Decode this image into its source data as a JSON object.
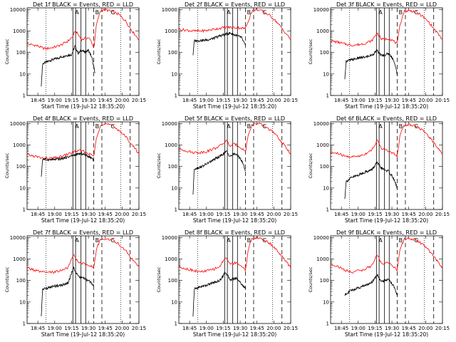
{
  "figure": {
    "xlabel": "Start Time (19-Jul-12 18:35:20)",
    "ylabel": "Counts/sec",
    "x_ticks": [
      "18:45",
      "19:00",
      "19:15",
      "19:30",
      "19:45",
      "20:00",
      "20:15"
    ],
    "y_ticks": [
      "1",
      "10",
      "100",
      "1000",
      "10000"
    ],
    "colors": {
      "events": "#000000",
      "lld": "#ff0000",
      "axes": "#000000"
    }
  },
  "chart_data": [
    {
      "type": "line",
      "title": "Det 1f BLACK = Events, RED = LLD",
      "xlim": [
        18.59,
        20.25
      ],
      "ylim": [
        1,
        12000
      ],
      "yscale": "log",
      "xlabel": "Start Time (19-Jul-12 18:35:20)",
      "ylabel": "Counts/sec",
      "markers": [
        "A",
        "B",
        "C"
      ],
      "series": [
        {
          "color": "#000000",
          "x": [
            18.8,
            18.82,
            18.87,
            18.95,
            19.05,
            19.15,
            19.25,
            19.3,
            19.35,
            19.4,
            19.45,
            19.5,
            19.55,
            19.6
          ],
          "y": [
            3,
            30,
            35,
            45,
            55,
            70,
            80,
            200,
            90,
            130,
            100,
            130,
            60,
            10
          ]
        },
        {
          "color": "#ff0000",
          "x": [
            18.59,
            18.7,
            18.75,
            18.8,
            18.87,
            19.0,
            19.1,
            19.2,
            19.28,
            19.3,
            19.4,
            19.5,
            19.55,
            19.58,
            19.62,
            19.68,
            19.75,
            19.85,
            19.95,
            20.05,
            20.15,
            20.25
          ],
          "y": [
            250,
            220,
            200,
            170,
            150,
            180,
            230,
            350,
            600,
            1100,
            400,
            500,
            300,
            150,
            2000,
            9000,
            10000,
            8000,
            6000,
            3000,
            1000,
            400
          ]
        }
      ]
    },
    {
      "type": "line",
      "title": "Det 2f BLACK = Events, RED = LLD",
      "xlim": [
        18.59,
        20.25
      ],
      "ylim": [
        1,
        12000
      ],
      "yscale": "log",
      "xlabel": "Start Time (19-Jul-12 18:35:20)",
      "ylabel": "Counts/sec",
      "markers": [
        "A",
        "B",
        "C"
      ],
      "series": [
        {
          "color": "#000000",
          "x": [
            18.8,
            18.82,
            18.9,
            19.0,
            19.1,
            19.2,
            19.28,
            19.35,
            19.45,
            19.52,
            19.58
          ],
          "y": [
            80,
            350,
            360,
            380,
            450,
            600,
            700,
            800,
            600,
            500,
            200
          ]
        },
        {
          "color": "#ff0000",
          "x": [
            18.59,
            18.7,
            18.8,
            18.9,
            19.0,
            19.1,
            19.2,
            19.3,
            19.4,
            19.5,
            19.58,
            19.62,
            19.68,
            19.75,
            19.85,
            19.95,
            20.05,
            20.15,
            20.25
          ],
          "y": [
            1200,
            1100,
            1000,
            1000,
            1050,
            1200,
            1350,
            1500,
            1450,
            1400,
            1300,
            3000,
            9000,
            10000,
            8000,
            5000,
            2500,
            1000,
            400
          ]
        }
      ]
    },
    {
      "type": "line",
      "title": "Det 3f BLACK = Events, RED = LLD",
      "xlim": [
        18.59,
        20.25
      ],
      "ylim": [
        1,
        12000
      ],
      "yscale": "log",
      "xlabel": "Start Time (19-Jul-12 18:35:20)",
      "ylabel": "Counts/sec",
      "markers": [
        "A",
        "B",
        "C"
      ],
      "series": [
        {
          "color": "#000000",
          "x": [
            18.8,
            18.82,
            18.9,
            19.0,
            19.1,
            19.2,
            19.28,
            19.35,
            19.45,
            19.52,
            19.58
          ],
          "y": [
            5,
            40,
            45,
            55,
            60,
            75,
            120,
            70,
            90,
            50,
            10
          ]
        },
        {
          "color": "#ff0000",
          "x": [
            18.59,
            18.7,
            18.8,
            18.9,
            19.0,
            19.1,
            19.2,
            19.28,
            19.35,
            19.45,
            19.52,
            19.58,
            19.62,
            19.68,
            19.75,
            19.85,
            19.95,
            20.05,
            20.15,
            20.25
          ],
          "y": [
            350,
            300,
            250,
            220,
            230,
            270,
            350,
            800,
            400,
            450,
            350,
            250,
            2000,
            8000,
            9000,
            8000,
            5000,
            2500,
            1000,
            400
          ]
        }
      ]
    },
    {
      "type": "line",
      "title": "Det 4f BLACK = Events, RED = LLD",
      "xlim": [
        18.59,
        20.25
      ],
      "ylim": [
        1,
        12000
      ],
      "yscale": "log",
      "xlabel": "Start Time (19-Jul-12 18:35:20)",
      "ylabel": "Counts/sec",
      "markers": [
        "A",
        "B",
        "C"
      ],
      "series": [
        {
          "color": "#000000",
          "x": [
            18.8,
            18.82,
            18.9,
            19.0,
            19.1,
            19.2,
            19.3,
            19.4,
            19.5,
            19.55,
            19.58
          ],
          "y": [
            30,
            220,
            210,
            210,
            230,
            280,
            350,
            400,
            300,
            250,
            200
          ]
        },
        {
          "color": "#ff0000",
          "x": [
            18.59,
            18.7,
            18.8,
            18.9,
            19.0,
            19.1,
            19.2,
            19.3,
            19.4,
            19.5,
            19.58,
            19.62,
            19.68,
            19.75,
            19.85,
            19.95,
            20.05,
            20.15,
            20.25
          ],
          "y": [
            350,
            300,
            250,
            240,
            250,
            290,
            380,
            500,
            550,
            400,
            300,
            2000,
            9000,
            10000,
            8000,
            5000,
            2500,
            1000,
            400
          ]
        }
      ]
    },
    {
      "type": "line",
      "title": "Det 5f BLACK = Events, RED = LLD",
      "xlim": [
        18.59,
        20.25
      ],
      "ylim": [
        1,
        12000
      ],
      "yscale": "log",
      "xlabel": "Start Time (19-Jul-12 18:35:20)",
      "ylabel": "Counts/sec",
      "markers": [
        "A",
        "B",
        "C"
      ],
      "series": [
        {
          "color": "#000000",
          "x": [
            18.8,
            18.82,
            18.9,
            19.0,
            19.1,
            19.2,
            19.3,
            19.35,
            19.42,
            19.5,
            19.55,
            19.58
          ],
          "y": [
            5,
            80,
            90,
            130,
            200,
            300,
            500,
            300,
            400,
            250,
            120,
            60
          ]
        },
        {
          "color": "#ff0000",
          "x": [
            18.59,
            18.7,
            18.8,
            18.9,
            19.0,
            19.1,
            19.2,
            19.3,
            19.35,
            19.42,
            19.5,
            19.58,
            19.62,
            19.68,
            19.75,
            19.85,
            19.95,
            20.05,
            20.15,
            20.25
          ],
          "y": [
            650,
            550,
            450,
            450,
            500,
            650,
            900,
            1600,
            900,
            1100,
            800,
            500,
            3000,
            9000,
            10000,
            8000,
            5000,
            2500,
            1000,
            400
          ]
        }
      ]
    },
    {
      "type": "line",
      "title": "Det 6f BLACK = Events, RED = LLD",
      "xlim": [
        18.59,
        20.25
      ],
      "ylim": [
        1,
        12000
      ],
      "yscale": "log",
      "xlabel": "Start Time (19-Jul-12 18:35:20)",
      "ylabel": "Counts/sec",
      "markers": [
        "A",
        "B",
        "C"
      ],
      "series": [
        {
          "color": "#000000",
          "x": [
            18.8,
            18.82,
            18.9,
            19.0,
            19.1,
            19.2,
            19.28,
            19.35,
            19.45,
            19.52,
            19.58
          ],
          "y": [
            3,
            20,
            30,
            40,
            55,
            70,
            150,
            80,
            60,
            30,
            10
          ]
        },
        {
          "color": "#ff0000",
          "x": [
            18.59,
            18.7,
            18.8,
            18.9,
            19.0,
            19.1,
            19.2,
            19.28,
            19.35,
            19.45,
            19.52,
            19.58,
            19.62,
            19.68,
            19.75,
            19.85,
            19.95,
            20.05,
            20.15,
            20.25
          ],
          "y": [
            450,
            400,
            300,
            280,
            300,
            380,
            600,
            1600,
            700,
            500,
            400,
            300,
            3000,
            8000,
            9000,
            8000,
            5000,
            2500,
            1000,
            400
          ]
        }
      ]
    },
    {
      "type": "line",
      "title": "Det 7f BLACK = Events, RED = LLD",
      "xlim": [
        18.59,
        20.25
      ],
      "ylim": [
        1,
        12000
      ],
      "yscale": "log",
      "xlabel": "Start Time (19-Jul-12 18:35:20)",
      "ylabel": "Counts/sec",
      "markers": [
        "A",
        "B",
        "C"
      ],
      "series": [
        {
          "color": "#000000",
          "x": [
            18.8,
            18.82,
            18.9,
            19.0,
            19.1,
            19.2,
            19.28,
            19.35,
            19.45,
            19.52,
            19.58
          ],
          "y": [
            2,
            40,
            45,
            55,
            60,
            80,
            400,
            150,
            120,
            90,
            60
          ]
        },
        {
          "color": "#ff0000",
          "x": [
            18.59,
            18.7,
            18.8,
            18.9,
            19.0,
            19.1,
            19.2,
            19.28,
            19.35,
            19.45,
            19.52,
            19.58,
            19.62,
            19.68,
            19.75,
            19.85,
            19.95,
            20.05,
            20.15,
            20.25
          ],
          "y": [
            400,
            300,
            250,
            230,
            250,
            300,
            400,
            1600,
            700,
            600,
            500,
            400,
            3000,
            8000,
            9000,
            8000,
            5000,
            2500,
            1000,
            400
          ]
        }
      ]
    },
    {
      "type": "line",
      "title": "Det 8f BLACK = Events, RED = LLD",
      "xlim": [
        18.59,
        20.25
      ],
      "ylim": [
        1,
        12000
      ],
      "yscale": "log",
      "xlabel": "Start Time (19-Jul-12 18:35:20)",
      "ylabel": "Counts/sec",
      "markers": [
        "A",
        "B",
        "C"
      ],
      "series": [
        {
          "color": "#000000",
          "x": [
            18.8,
            18.82,
            18.9,
            19.0,
            19.1,
            19.2,
            19.28,
            19.35,
            19.45,
            19.52,
            19.58
          ],
          "y": [
            2,
            40,
            50,
            60,
            80,
            100,
            250,
            110,
            130,
            70,
            40
          ]
        },
        {
          "color": "#ff0000",
          "x": [
            18.59,
            18.7,
            18.8,
            18.9,
            19.0,
            19.1,
            19.2,
            19.28,
            19.35,
            19.45,
            19.52,
            19.58,
            19.62,
            19.68,
            19.75,
            19.85,
            19.95,
            20.05,
            20.15,
            20.25
          ],
          "y": [
            450,
            350,
            300,
            250,
            280,
            330,
            450,
            1200,
            600,
            700,
            450,
            300,
            3000,
            9000,
            10000,
            8000,
            5000,
            2500,
            1000,
            400
          ]
        }
      ]
    },
    {
      "type": "line",
      "title": "Det 9f BLACK = Events, RED = LLD",
      "xlim": [
        18.59,
        20.25
      ],
      "ylim": [
        1,
        12000
      ],
      "yscale": "log",
      "xlabel": "Start Time (19-Jul-12 18:35:20)",
      "ylabel": "Counts/sec",
      "markers": [
        "A",
        "B",
        "C"
      ],
      "series": [
        {
          "color": "#000000",
          "x": [
            18.8,
            18.82,
            18.9,
            19.0,
            19.1,
            19.2,
            19.28,
            19.35,
            19.45,
            19.52,
            19.58
          ],
          "y": [
            20,
            25,
            35,
            45,
            60,
            80,
            180,
            90,
            110,
            60,
            20
          ]
        },
        {
          "color": "#ff0000",
          "x": [
            18.59,
            18.7,
            18.8,
            18.9,
            19.0,
            19.1,
            19.2,
            19.28,
            19.35,
            19.45,
            19.52,
            19.58,
            19.62,
            19.68,
            19.75,
            19.85,
            19.95,
            20.05,
            20.15,
            20.25
          ],
          "y": [
            600,
            450,
            300,
            250,
            280,
            330,
            500,
            1500,
            600,
            700,
            450,
            300,
            3000,
            8000,
            9000,
            8000,
            5000,
            2500,
            1000,
            400
          ]
        }
      ]
    }
  ]
}
